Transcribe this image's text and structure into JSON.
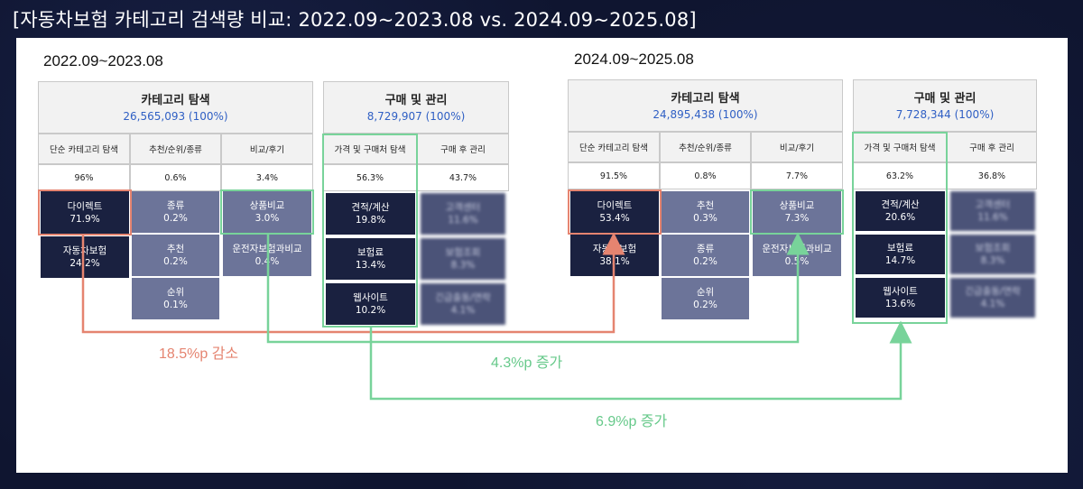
{
  "title": "[자동차보험 카테고리 검색량 비교: 2022.09~2023.08 vs. 2024.09~2025.08]",
  "colors": {
    "dark_block": "#1a2140",
    "slate_block": "#6c7499",
    "highlight_red": "#e58470",
    "highlight_green": "#78d39a",
    "total_blue": "#2f5fc4"
  },
  "left": {
    "period": "2022.09~2023.08",
    "explore": {
      "title": "카테고리 탐색",
      "total": "26,565,093 (100%)",
      "cols": [
        {
          "label": "단순 카테고리 탐색",
          "pct": "96%"
        },
        {
          "label": "추천/순위/종류",
          "pct": "0.6%"
        },
        {
          "label": "비교/후기",
          "pct": "3.4%"
        }
      ],
      "col1": [
        {
          "name": "다이렉트",
          "pct": "71.9%"
        },
        {
          "name": "자동차보험",
          "pct": "24.2%"
        }
      ],
      "col2": [
        {
          "name": "종류",
          "pct": "0.2%"
        },
        {
          "name": "추천",
          "pct": "0.2%"
        },
        {
          "name": "순위",
          "pct": "0.1%"
        }
      ],
      "col3": [
        {
          "name": "상품비교",
          "pct": "3.0%"
        },
        {
          "name": "운전자보험과비교",
          "pct": "0.4%"
        }
      ]
    },
    "purchase": {
      "title": "구매 및 관리",
      "total": "8,729,907 (100%)",
      "cols": [
        {
          "label": "가격 및 구매처 탐색",
          "pct": "56.3%"
        },
        {
          "label": "구매 후 관리",
          "pct": "43.7%"
        }
      ],
      "col1": [
        {
          "name": "견적/계산",
          "pct": "19.8%"
        },
        {
          "name": "보험료",
          "pct": "13.4%"
        },
        {
          "name": "웹사이트",
          "pct": "10.2%"
        }
      ],
      "col2": [
        {
          "name": "고객센터",
          "pct": "11.6%"
        },
        {
          "name": "보험조회",
          "pct": "8.3%"
        },
        {
          "name": "긴급출동/연락",
          "pct": "4.1%"
        }
      ]
    }
  },
  "right": {
    "period": "2024.09~2025.08",
    "explore": {
      "title": "카테고리 탐색",
      "total": "24,895,438 (100%)",
      "cols": [
        {
          "label": "단순 카테고리 탐색",
          "pct": "91.5%"
        },
        {
          "label": "추천/순위/종류",
          "pct": "0.8%"
        },
        {
          "label": "비교/후기",
          "pct": "7.7%"
        }
      ],
      "col1": [
        {
          "name": "다이렉트",
          "pct": "53.4%"
        },
        {
          "name": "자동차보험",
          "pct": "38.1%"
        }
      ],
      "col2": [
        {
          "name": "추천",
          "pct": "0.3%"
        },
        {
          "name": "종류",
          "pct": "0.2%"
        },
        {
          "name": "순위",
          "pct": "0.2%"
        }
      ],
      "col3": [
        {
          "name": "상품비교",
          "pct": "7.3%"
        },
        {
          "name": "운전자보험과비교",
          "pct": "0.5%"
        }
      ]
    },
    "purchase": {
      "title": "구매 및 관리",
      "total": "7,728,344 (100%)",
      "cols": [
        {
          "label": "가격 및 구매처 탐색",
          "pct": "63.2%"
        },
        {
          "label": "구매 후 관리",
          "pct": "36.8%"
        }
      ],
      "col1": [
        {
          "name": "견적/계산",
          "pct": "20.6%"
        },
        {
          "name": "보험료",
          "pct": "14.7%"
        },
        {
          "name": "웹사이트",
          "pct": "13.6%"
        }
      ],
      "col2": [
        {
          "name": "고객센터",
          "pct": "11.6%"
        },
        {
          "name": "보험조회",
          "pct": "8.3%"
        },
        {
          "name": "긴급출동/연락",
          "pct": "4.1%"
        }
      ]
    }
  },
  "annotations": {
    "direct_change": "18.5%p 감소",
    "compare_change": "4.3%p 증가",
    "website_change": "6.9%p 증가"
  }
}
